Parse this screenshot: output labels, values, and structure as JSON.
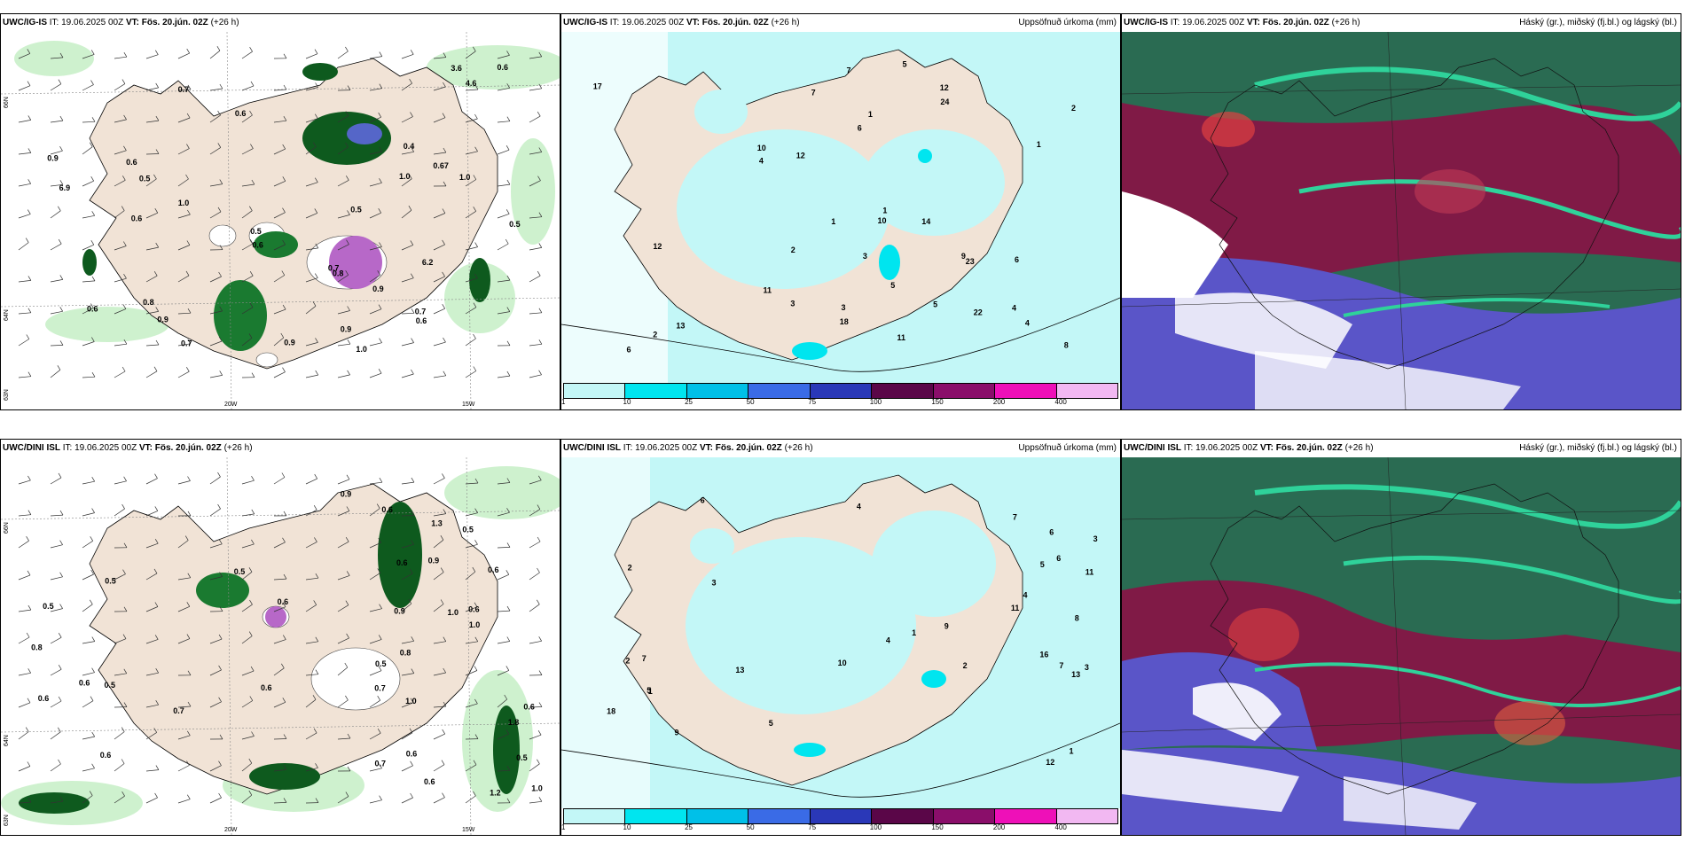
{
  "colors": {
    "land": "#f1e3d6",
    "sea_white": "#ffffff",
    "precip_cyan": "#c3f7f7",
    "precip_green_light": "#c9f0c9",
    "precip_green_dark": "#0e5a1e",
    "snow_purple": "#b768c8",
    "cloud_high": "#2a6b52",
    "cloud_mid": "#8a1245",
    "cloud_low": "#5a55c8",
    "cloud_teal": "#2fd29a"
  },
  "panels": [
    {
      "model": "UWC/IG-IS",
      "it_label": "IT:",
      "it_value": "19.06.2025 00Z",
      "vt_label": "VT:",
      "vt_value": "Fös. 20.jún. 02Z",
      "lead": "(+26 h)",
      "right_title": "",
      "lat_labels": [
        "66N",
        "64N",
        "63N"
      ],
      "lon_labels": [
        "20W",
        "15W"
      ],
      "values": [
        "1.0",
        "0.7",
        "0.8",
        "0.6",
        "0.67",
        "0.9",
        "0.5",
        "1.0",
        "0.6",
        "0.9",
        "0.6",
        "0.9",
        "0.5",
        "0.7",
        "1.0",
        "3.6",
        "6.9",
        "4.6",
        "6.2",
        "1.0",
        "0.7",
        "0.8",
        "0.7",
        "0.6",
        "0.5",
        "0.4",
        "0.6",
        "0.5",
        "0.9",
        "0.6",
        "0.9",
        "0.6"
      ]
    },
    {
      "model": "UWC/IG-IS",
      "it_label": "IT:",
      "it_value": "19.06.2025 00Z",
      "vt_label": "VT:",
      "vt_value": "Fös. 20.jún. 02Z",
      "lead": "(+26 h)",
      "right_title": "Uppsöfnuð úrkoma (mm)",
      "values": [
        "2",
        "6",
        "1",
        "3",
        "7",
        "5",
        "4",
        "12",
        "22",
        "11",
        "8",
        "4",
        "3",
        "7",
        "5",
        "10",
        "9",
        "12",
        "1",
        "2",
        "17",
        "13",
        "18",
        "14",
        "23",
        "24",
        "12",
        "6",
        "1",
        "5",
        "4",
        "2",
        "1",
        "6",
        "10",
        "11",
        "3"
      ],
      "colorbar": {
        "colors": [
          "#c3f7f7",
          "#00e5ef",
          "#00c0e8",
          "#3a6be6",
          "#2a38b8",
          "#5a0648",
          "#8a0e6a",
          "#ee10b8",
          "#f2b8f2"
        ],
        "labels": [
          "1",
          "10",
          "25",
          "50",
          "75",
          "100",
          "150",
          "200",
          "400"
        ]
      }
    },
    {
      "model": "UWC/IG-IS",
      "it_label": "IT:",
      "it_value": "19.06.2025 00Z",
      "vt_label": "VT:",
      "vt_value": "Fös. 20.jún. 02Z",
      "lead": "(+26 h)",
      "right_title": "Háský (gr.), miðský (fj.bl.) og lágský (bl.)"
    },
    {
      "model": "UWC/DINI ISL",
      "it_label": "IT:",
      "it_value": "19.06.2025 00Z",
      "vt_label": "VT:",
      "vt_value": "Fös. 20.jún. 02Z",
      "lead": "(+26 h)",
      "right_title": "",
      "lat_labels": [
        "66N",
        "64N",
        "63N"
      ],
      "lon_labels": [
        "20W",
        "15W"
      ],
      "values": [
        "0.7",
        "0.6",
        "1.0",
        "1.8",
        "0.7",
        "0.9",
        "0.6",
        "0.6",
        "0.5",
        "0.6",
        "0.8",
        "0.5",
        "0.6",
        "1.0",
        "0.7",
        "1.2",
        "0.5",
        "0.6",
        "1.3",
        "0.5",
        "0.6",
        "0.8",
        "0.9",
        "0.6",
        "1.0",
        "0.6",
        "0.5",
        "0.6",
        "1.0",
        "0.5",
        "0.6",
        "0.9",
        "0.5",
        "0.6"
      ]
    },
    {
      "model": "UWC/DINI ISL",
      "it_label": "IT:",
      "it_value": "19.06.2025 00Z",
      "vt_label": "VT:",
      "vt_value": "Fös. 20.jún. 02Z",
      "lead": "(+26 h)",
      "right_title": "Uppsöfnuð úrkoma (mm)",
      "values": [
        "3",
        "1",
        "2",
        "5",
        "7",
        "8",
        "12",
        "13",
        "9",
        "6",
        "4",
        "18",
        "1",
        "11",
        "16",
        "10",
        "3",
        "2",
        "5",
        "4",
        "6",
        "7",
        "1",
        "2",
        "3",
        "4",
        "5",
        "6",
        "7",
        "9",
        "13",
        "11"
      ],
      "colorbar": {
        "colors": [
          "#c3f7f7",
          "#00e5ef",
          "#00c0e8",
          "#3a6be6",
          "#2a38b8",
          "#5a0648",
          "#8a0e6a",
          "#ee10b8",
          "#f2b8f2"
        ],
        "labels": [
          "1",
          "10",
          "25",
          "50",
          "75",
          "100",
          "150",
          "200",
          "400"
        ]
      }
    },
    {
      "model": "UWC/DINI ISL",
      "it_label": "IT:",
      "it_value": "19.06.2025 00Z",
      "vt_label": "VT:",
      "vt_value": "Fös. 20.jún. 02Z",
      "lead": "(+26 h)",
      "right_title": "Háský (gr.), miðský (fj.bl.) og lágský (bl.)"
    }
  ]
}
